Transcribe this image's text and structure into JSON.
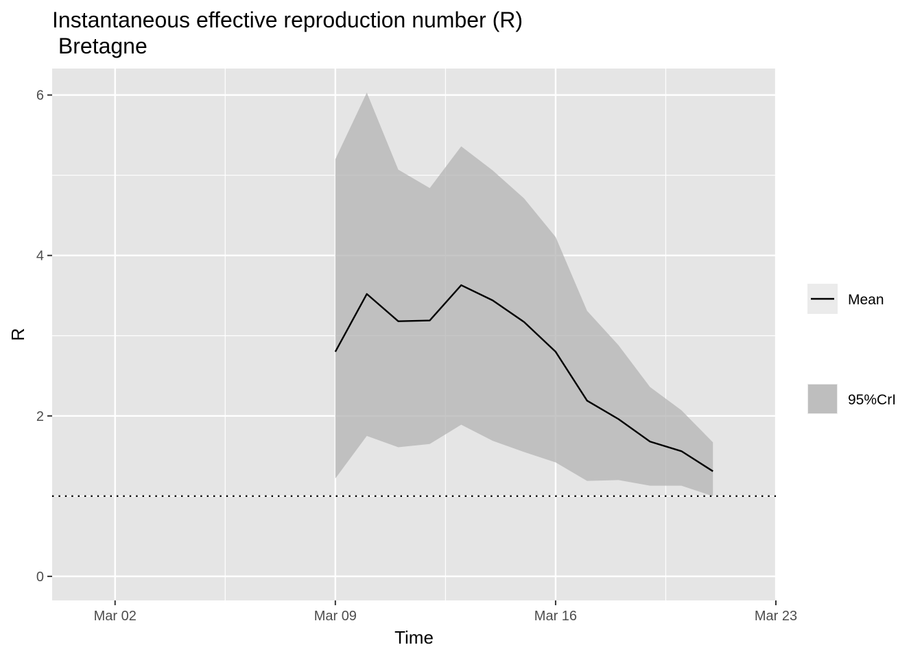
{
  "chart_data": {
    "type": "line",
    "title": "Instantaneous effective reproduction number (R)",
    "subtitle": " Bretagne",
    "xlabel": "Time",
    "ylabel": "R",
    "x_ticks": [
      "Mar 02",
      "Mar 09",
      "Mar 16",
      "Mar 23"
    ],
    "y_ticks": [
      "0",
      "2",
      "4",
      "6"
    ],
    "xlim": [
      "2020-02-29",
      "2020-03-23"
    ],
    "ylim": [
      -0.3,
      6.33
    ],
    "x": [
      "2020-03-09",
      "2020-03-10",
      "2020-03-11",
      "2020-03-12",
      "2020-03-13",
      "2020-03-14",
      "2020-03-15",
      "2020-03-16",
      "2020-03-17",
      "2020-03-18",
      "2020-03-19",
      "2020-03-20",
      "2020-03-21"
    ],
    "series": [
      {
        "name": "Mean",
        "values": [
          2.8,
          3.52,
          3.18,
          3.19,
          3.63,
          3.44,
          3.17,
          2.8,
          2.19,
          1.96,
          1.68,
          1.56,
          1.31
        ]
      },
      {
        "name": "95%CrI",
        "lower": [
          1.22,
          1.75,
          1.61,
          1.65,
          1.89,
          1.69,
          1.55,
          1.42,
          1.19,
          1.2,
          1.13,
          1.13,
          1.0
        ],
        "upper": [
          5.2,
          6.03,
          5.07,
          4.84,
          5.36,
          5.06,
          4.71,
          4.23,
          3.31,
          2.88,
          2.36,
          2.07,
          1.67
        ]
      }
    ],
    "reference_line": {
      "y": 1,
      "style": "dotted"
    },
    "grid": true,
    "legend_position": "right",
    "legend": [
      "Mean",
      "95%CrI"
    ],
    "colors": {
      "panel": "#e5e5e5",
      "grid": "#ffffff",
      "ribbon": "#bebebe",
      "line": "#000000"
    }
  }
}
